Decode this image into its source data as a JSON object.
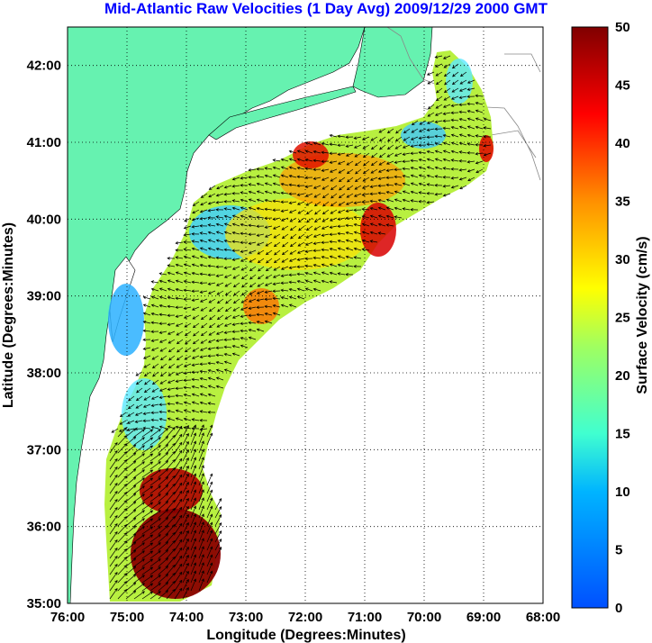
{
  "chart_data": {
    "type": "heatmap",
    "title": "Mid-Atlantic Raw Velocities (1 Day Avg) 2009/12/29 2000 GMT",
    "xlabel": "Longitude (Degrees:Minutes)",
    "ylabel": "Latitude (Degrees:Minutes)",
    "colorbar_label": "Surface Velocity (cm/s)",
    "x_ticks": [
      "76:00",
      "75:00",
      "74:00",
      "73:00",
      "72:00",
      "71:00",
      "70:00",
      "69:00",
      "68:00"
    ],
    "y_ticks": [
      "35:00",
      "36:00",
      "37:00",
      "38:00",
      "39:00",
      "40:00",
      "41:00",
      "42:00"
    ],
    "colorbar_ticks": [
      "0",
      "5",
      "10",
      "15",
      "20",
      "25",
      "30",
      "35",
      "40",
      "45",
      "50"
    ],
    "xlim": [
      -76,
      -68
    ],
    "ylim": [
      35,
      42.5
    ],
    "clim": [
      0,
      50
    ],
    "colormap": "jet",
    "grid": true,
    "colors": {
      "land": "#66f2b0",
      "title": "#0000ff",
      "coast": "#888888"
    }
  }
}
